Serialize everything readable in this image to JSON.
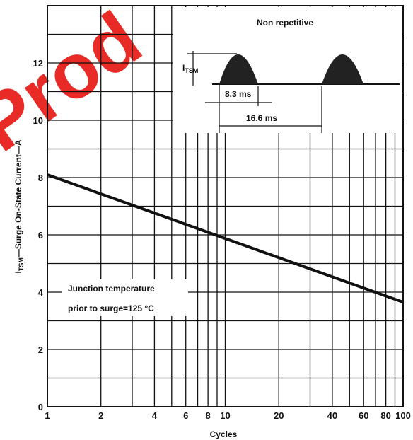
{
  "watermark": "Prod",
  "chart_data": {
    "type": "line",
    "title": "",
    "xlabel": "Cycles",
    "ylabel": "I_TSM—Surge On-State Current—A",
    "ylabel_parts": {
      "main": "I",
      "sub": "TSM",
      "rest": "—Surge On-State Current—A"
    },
    "xscale": "log",
    "xlim": [
      1,
      100
    ],
    "ylim": [
      0,
      14
    ],
    "x_ticks": [
      1,
      2,
      4,
      6,
      8,
      10,
      20,
      40,
      60,
      80,
      100
    ],
    "x_tick_labels": [
      "1",
      "2",
      "4",
      "6",
      "8",
      "10",
      "20",
      "40",
      "60",
      "80",
      "100"
    ],
    "y_ticks": [
      0,
      2,
      4,
      6,
      8,
      10,
      12
    ],
    "y_tick_labels": [
      "0",
      "2",
      "4",
      "6",
      "8",
      "10",
      "12"
    ],
    "grid": true,
    "series": [
      {
        "x": [
          1,
          100
        ],
        "y": [
          8.1,
          3.65
        ]
      }
    ],
    "annotations": {
      "condition_line1": "Junction temperature",
      "condition_line2": "prior to surge=125 °C",
      "inset_title": "Non repetitive",
      "inset_peak_label": "I",
      "inset_peak_sub": "TSM",
      "inset_width1": "8.3 ms",
      "inset_width2": "16.6 ms"
    }
  }
}
